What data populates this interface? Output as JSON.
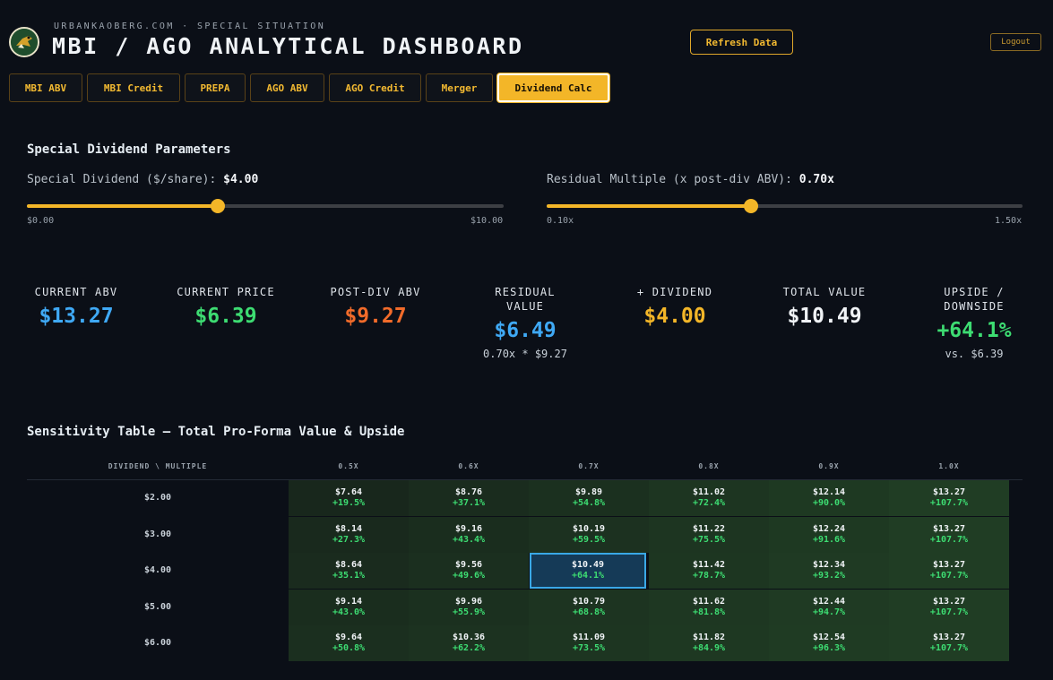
{
  "header": {
    "site": "URBANKAOBERG.COM · SPECIAL SITUATION",
    "title": "MBI / AGO ANALYTICAL DASHBOARD",
    "refresh_label": "Refresh Data",
    "logout_label": "Logout"
  },
  "tabs": [
    {
      "label": "MBI ABV",
      "active": false
    },
    {
      "label": "MBI Credit",
      "active": false
    },
    {
      "label": "PREPA",
      "active": false
    },
    {
      "label": "AGO ABV",
      "active": false
    },
    {
      "label": "AGO Credit",
      "active": false
    },
    {
      "label": "Merger",
      "active": false
    },
    {
      "label": "Dividend Calc",
      "active": true
    }
  ],
  "params": {
    "section_title": "Special Dividend Parameters",
    "dividend": {
      "label": "Special Dividend ($/share): ",
      "value": "$4.00",
      "min": "$0.00",
      "max": "$10.00",
      "level": 0.4
    },
    "multiple": {
      "label": "Residual Multiple (x post-div ABV): ",
      "value": "0.70x",
      "min": "0.10x",
      "max": "1.50x",
      "level": 0.4286
    }
  },
  "metrics": {
    "current_abv": {
      "label": "CURRENT ABV",
      "value": "$13.27",
      "color": "#3fa9f5"
    },
    "current_price": {
      "label": "CURRENT PRICE",
      "value": "$6.39",
      "color": "#3ddc72"
    },
    "post_div_abv": {
      "label": "POST-DIV ABV",
      "value": "$9.27",
      "color": "#f26b2a"
    },
    "residual_value": {
      "label": "RESIDUAL VALUE",
      "value": "$6.49",
      "sub": "0.70x * $9.27",
      "color": "#3fa9f5"
    },
    "dividend": {
      "label": "+ DIVIDEND",
      "value": "$4.00",
      "color": "#f3b628"
    },
    "total_value": {
      "label": "TOTAL VALUE",
      "value": "$10.49",
      "color": "#f0f3f6"
    },
    "upside": {
      "label": "UPSIDE / DOWNSIDE",
      "value": "+64.1%",
      "sub": "vs. $6.39",
      "color": "#3ddc72"
    }
  },
  "sensitivity": {
    "title": "Sensitivity Table — Total Pro-Forma Value & Upside",
    "corner_label": "DIVIDEND \\ MULTIPLE",
    "multiples": [
      "0.5X",
      "0.6X",
      "0.7X",
      "0.8X",
      "0.9X",
      "1.0X"
    ],
    "dividends": [
      "$2.00",
      "$3.00",
      "$4.00",
      "$5.00",
      "$6.00"
    ],
    "selected": {
      "row": 2,
      "col": 2
    },
    "cells": [
      [
        {
          "v": "$7.64",
          "p": "+19.5%"
        },
        {
          "v": "$8.76",
          "p": "+37.1%"
        },
        {
          "v": "$9.89",
          "p": "+54.8%"
        },
        {
          "v": "$11.02",
          "p": "+72.4%"
        },
        {
          "v": "$12.14",
          "p": "+90.0%"
        },
        {
          "v": "$13.27",
          "p": "+107.7%"
        }
      ],
      [
        {
          "v": "$8.14",
          "p": "+27.3%"
        },
        {
          "v": "$9.16",
          "p": "+43.4%"
        },
        {
          "v": "$10.19",
          "p": "+59.5%"
        },
        {
          "v": "$11.22",
          "p": "+75.5%"
        },
        {
          "v": "$12.24",
          "p": "+91.6%"
        },
        {
          "v": "$13.27",
          "p": "+107.7%"
        }
      ],
      [
        {
          "v": "$8.64",
          "p": "+35.1%"
        },
        {
          "v": "$9.56",
          "p": "+49.6%"
        },
        {
          "v": "$10.49",
          "p": "+64.1%"
        },
        {
          "v": "$11.42",
          "p": "+78.7%"
        },
        {
          "v": "$12.34",
          "p": "+93.2%"
        },
        {
          "v": "$13.27",
          "p": "+107.7%"
        }
      ],
      [
        {
          "v": "$9.14",
          "p": "+43.0%"
        },
        {
          "v": "$9.96",
          "p": "+55.9%"
        },
        {
          "v": "$10.79",
          "p": "+68.8%"
        },
        {
          "v": "$11.62",
          "p": "+81.8%"
        },
        {
          "v": "$12.44",
          "p": "+94.7%"
        },
        {
          "v": "$13.27",
          "p": "+107.7%"
        }
      ],
      [
        {
          "v": "$9.64",
          "p": "+50.8%"
        },
        {
          "v": "$10.36",
          "p": "+62.2%"
        },
        {
          "v": "$11.09",
          "p": "+73.5%"
        },
        {
          "v": "$11.82",
          "p": "+84.9%"
        },
        {
          "v": "$12.54",
          "p": "+96.3%"
        },
        {
          "v": "$13.27",
          "p": "+107.7%"
        }
      ]
    ]
  }
}
